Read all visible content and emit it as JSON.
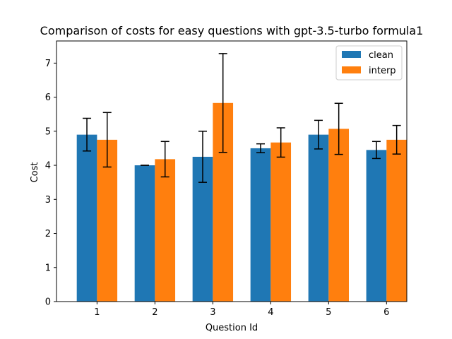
{
  "chart_data": {
    "type": "bar",
    "title": "Comparison of costs for easy questions with gpt-3.5-turbo formula1",
    "xlabel": "Question Id",
    "ylabel": "Cost",
    "categories": [
      "1",
      "2",
      "3",
      "4",
      "5",
      "6"
    ],
    "ylim": [
      0,
      7.65
    ],
    "yticks": [
      0,
      1,
      2,
      3,
      4,
      5,
      6,
      7
    ],
    "grid": false,
    "legend_position": "top-right",
    "series": [
      {
        "name": "clean",
        "color": "#1f77b4",
        "values": [
          4.9,
          4.0,
          4.25,
          4.5,
          4.9,
          4.45
        ],
        "errors": [
          0.48,
          0.0,
          0.75,
          0.13,
          0.42,
          0.25
        ]
      },
      {
        "name": "interp",
        "color": "#ff7f0e",
        "values": [
          4.75,
          4.18,
          5.83,
          4.67,
          5.07,
          4.75
        ],
        "errors": [
          0.8,
          0.52,
          1.45,
          0.43,
          0.75,
          0.42
        ]
      }
    ]
  }
}
